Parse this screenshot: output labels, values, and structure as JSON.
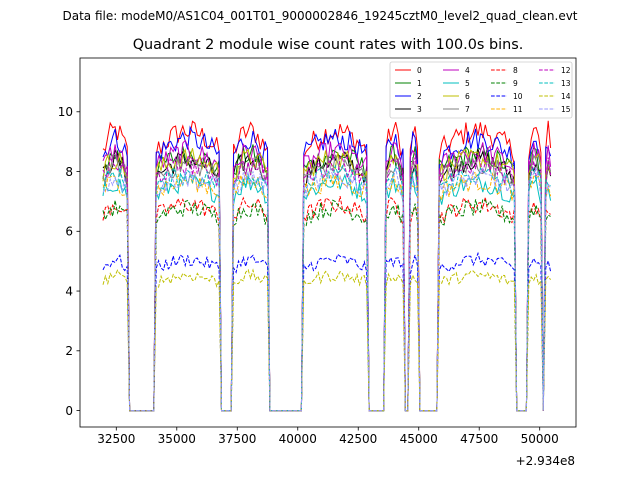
{
  "suptitle": "Data file: modeM0/AS1C04_001T01_9000002846_19245cztM0_level2_quad_clean.evt",
  "chart_data": {
    "type": "line",
    "title": "Quadrant 2 module wise count rates with 100.0s bins.",
    "xlabel": "",
    "ylabel": "",
    "x_offset_text": "+2.934e8",
    "xlim": [
      31000,
      51500
    ],
    "ylim": [
      -0.55,
      11.8
    ],
    "xticks": [
      32500,
      35000,
      37500,
      40000,
      42500,
      45000,
      47500,
      50000
    ],
    "xtick_labels": [
      "32500",
      "35000",
      "37500",
      "40000",
      "42500",
      "45000",
      "47500",
      "50000"
    ],
    "yticks": [
      0,
      2,
      4,
      6,
      8,
      10
    ],
    "ytick_labels": [
      "0",
      "2",
      "4",
      "6",
      "8",
      "10"
    ],
    "legend_location": "top-right",
    "legend_columns": 4,
    "good_time_intervals": [
      [
        31950,
        32950
      ],
      [
        34100,
        36800
      ],
      [
        37300,
        38750
      ],
      [
        40200,
        42900
      ],
      [
        43600,
        44350
      ],
      [
        44650,
        44950
      ],
      [
        45850,
        48950
      ],
      [
        49550,
        50050
      ],
      [
        50250,
        50450
      ]
    ],
    "bin_seconds": 100,
    "series": [
      {
        "name": "0",
        "color": "#ff0000",
        "style": "solid",
        "level": 9.0,
        "slope": 0.6
      },
      {
        "name": "1",
        "color": "#008000",
        "style": "solid",
        "level": 8.3,
        "slope": 0.45
      },
      {
        "name": "2",
        "color": "#0000ff",
        "style": "solid",
        "level": 8.8,
        "slope": 0.5
      },
      {
        "name": "3",
        "color": "#000000",
        "style": "solid",
        "level": 8.1,
        "slope": 0.5
      },
      {
        "name": "4",
        "color": "#bf00bf",
        "style": "solid",
        "level": 8.4,
        "slope": 0.45
      },
      {
        "name": "5",
        "color": "#00bfbf",
        "style": "solid",
        "level": 7.4,
        "slope": 0.4
      },
      {
        "name": "6",
        "color": "#bfbf00",
        "style": "solid",
        "level": 8.2,
        "slope": 0.4
      },
      {
        "name": "7",
        "color": "#808080",
        "style": "solid",
        "level": 8.0,
        "slope": 0.4
      },
      {
        "name": "8",
        "color": "#ff0000",
        "style": "dashed",
        "level": 6.7,
        "slope": 0.35
      },
      {
        "name": "9",
        "color": "#008000",
        "style": "dashed",
        "level": 6.6,
        "slope": 0.3
      },
      {
        "name": "10",
        "color": "#0000ff",
        "style": "dashed",
        "level": 4.9,
        "slope": 0.25
      },
      {
        "name": "11",
        "color": "#ffb000",
        "style": "dashed",
        "level": 7.5,
        "slope": 0.3
      },
      {
        "name": "12",
        "color": "#bf00bf",
        "style": "dashed",
        "level": 8.0,
        "slope": 0.35
      },
      {
        "name": "13",
        "color": "#00bfbf",
        "style": "dashed",
        "level": 7.7,
        "slope": 0.3
      },
      {
        "name": "14",
        "color": "#bfbf00",
        "style": "dashed",
        "level": 4.4,
        "slope": 0.2
      },
      {
        "name": "15",
        "color": "#9999ff",
        "style": "dashed",
        "level": 7.6,
        "slope": 0.3
      }
    ]
  }
}
